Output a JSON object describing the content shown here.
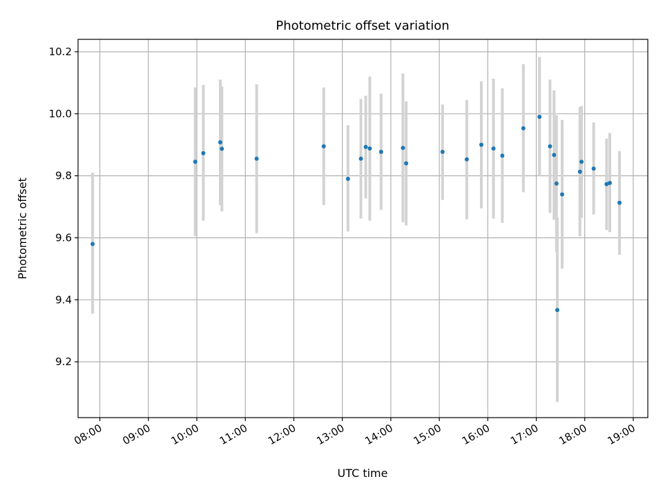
{
  "chart_data": {
    "type": "scatter",
    "title": "Photometric offset variation",
    "xlabel": "UTC time",
    "ylabel": "Photometric offset",
    "x_scale": "time",
    "xlim": [
      "07:33",
      "19:18"
    ],
    "ylim": [
      9.02,
      10.24
    ],
    "x_ticks": [
      "08:00",
      "09:00",
      "10:00",
      "11:00",
      "12:00",
      "13:00",
      "14:00",
      "15:00",
      "16:00",
      "17:00",
      "18:00",
      "19:00"
    ],
    "y_ticks": [
      9.2,
      9.4,
      9.6,
      9.8,
      10.0,
      10.2
    ],
    "y_tick_labels": [
      "9.2",
      "9.4",
      "9.6",
      "9.8",
      "10.0",
      "10.2"
    ],
    "grid": true,
    "legend": null,
    "colors": {
      "point": "#1f77b4",
      "errorbar": "#d3d3d3",
      "grid": "#b0b0b0"
    },
    "points": [
      {
        "t": "07:51",
        "y": 9.58,
        "lo": 9.355,
        "hi": 9.81
      },
      {
        "t": "09:58",
        "y": 9.845,
        "lo": 9.605,
        "hi": 10.085
      },
      {
        "t": "10:08",
        "y": 9.873,
        "lo": 9.655,
        "hi": 10.093
      },
      {
        "t": "10:29",
        "y": 9.908,
        "lo": 9.705,
        "hi": 10.11
      },
      {
        "t": "10:31",
        "y": 9.887,
        "lo": 9.685,
        "hi": 10.088
      },
      {
        "t": "11:14",
        "y": 9.855,
        "lo": 9.615,
        "hi": 10.095
      },
      {
        "t": "12:37",
        "y": 9.895,
        "lo": 9.705,
        "hi": 10.085
      },
      {
        "t": "13:07",
        "y": 9.79,
        "lo": 9.62,
        "hi": 9.963
      },
      {
        "t": "13:23",
        "y": 9.855,
        "lo": 9.662,
        "hi": 10.048
      },
      {
        "t": "13:29",
        "y": 9.893,
        "lo": 9.727,
        "hi": 10.058
      },
      {
        "t": "13:34",
        "y": 9.888,
        "lo": 9.655,
        "hi": 10.12
      },
      {
        "t": "13:48",
        "y": 9.877,
        "lo": 9.69,
        "hi": 10.065
      },
      {
        "t": "14:15",
        "y": 9.89,
        "lo": 9.65,
        "hi": 10.13
      },
      {
        "t": "14:19",
        "y": 9.84,
        "lo": 9.64,
        "hi": 10.04
      },
      {
        "t": "15:04",
        "y": 9.877,
        "lo": 9.722,
        "hi": 10.03
      },
      {
        "t": "15:34",
        "y": 9.853,
        "lo": 9.66,
        "hi": 10.045
      },
      {
        "t": "15:52",
        "y": 9.9,
        "lo": 9.695,
        "hi": 10.105
      },
      {
        "t": "16:07",
        "y": 9.888,
        "lo": 9.662,
        "hi": 10.113
      },
      {
        "t": "16:18",
        "y": 9.865,
        "lo": 9.648,
        "hi": 10.082
      },
      {
        "t": "16:44",
        "y": 9.953,
        "lo": 9.747,
        "hi": 10.16
      },
      {
        "t": "17:04",
        "y": 9.99,
        "lo": 9.8,
        "hi": 10.183
      },
      {
        "t": "17:17",
        "y": 9.895,
        "lo": 9.68,
        "hi": 10.11
      },
      {
        "t": "17:22",
        "y": 9.867,
        "lo": 9.658,
        "hi": 10.075
      },
      {
        "t": "17:25",
        "y": 9.775,
        "lo": 9.555,
        "hi": 9.995
      },
      {
        "t": "17:26",
        "y": 9.367,
        "lo": 9.07,
        "hi": 9.665
      },
      {
        "t": "17:32",
        "y": 9.74,
        "lo": 9.5,
        "hi": 9.98
      },
      {
        "t": "17:54",
        "y": 9.813,
        "lo": 9.605,
        "hi": 10.022
      },
      {
        "t": "17:56",
        "y": 9.845,
        "lo": 9.665,
        "hi": 10.025
      },
      {
        "t": "18:11",
        "y": 9.823,
        "lo": 9.675,
        "hi": 9.972
      },
      {
        "t": "18:27",
        "y": 9.773,
        "lo": 9.625,
        "hi": 9.92
      },
      {
        "t": "18:31",
        "y": 9.777,
        "lo": 9.618,
        "hi": 9.938
      },
      {
        "t": "18:43",
        "y": 9.713,
        "lo": 9.545,
        "hi": 9.88
      }
    ]
  }
}
